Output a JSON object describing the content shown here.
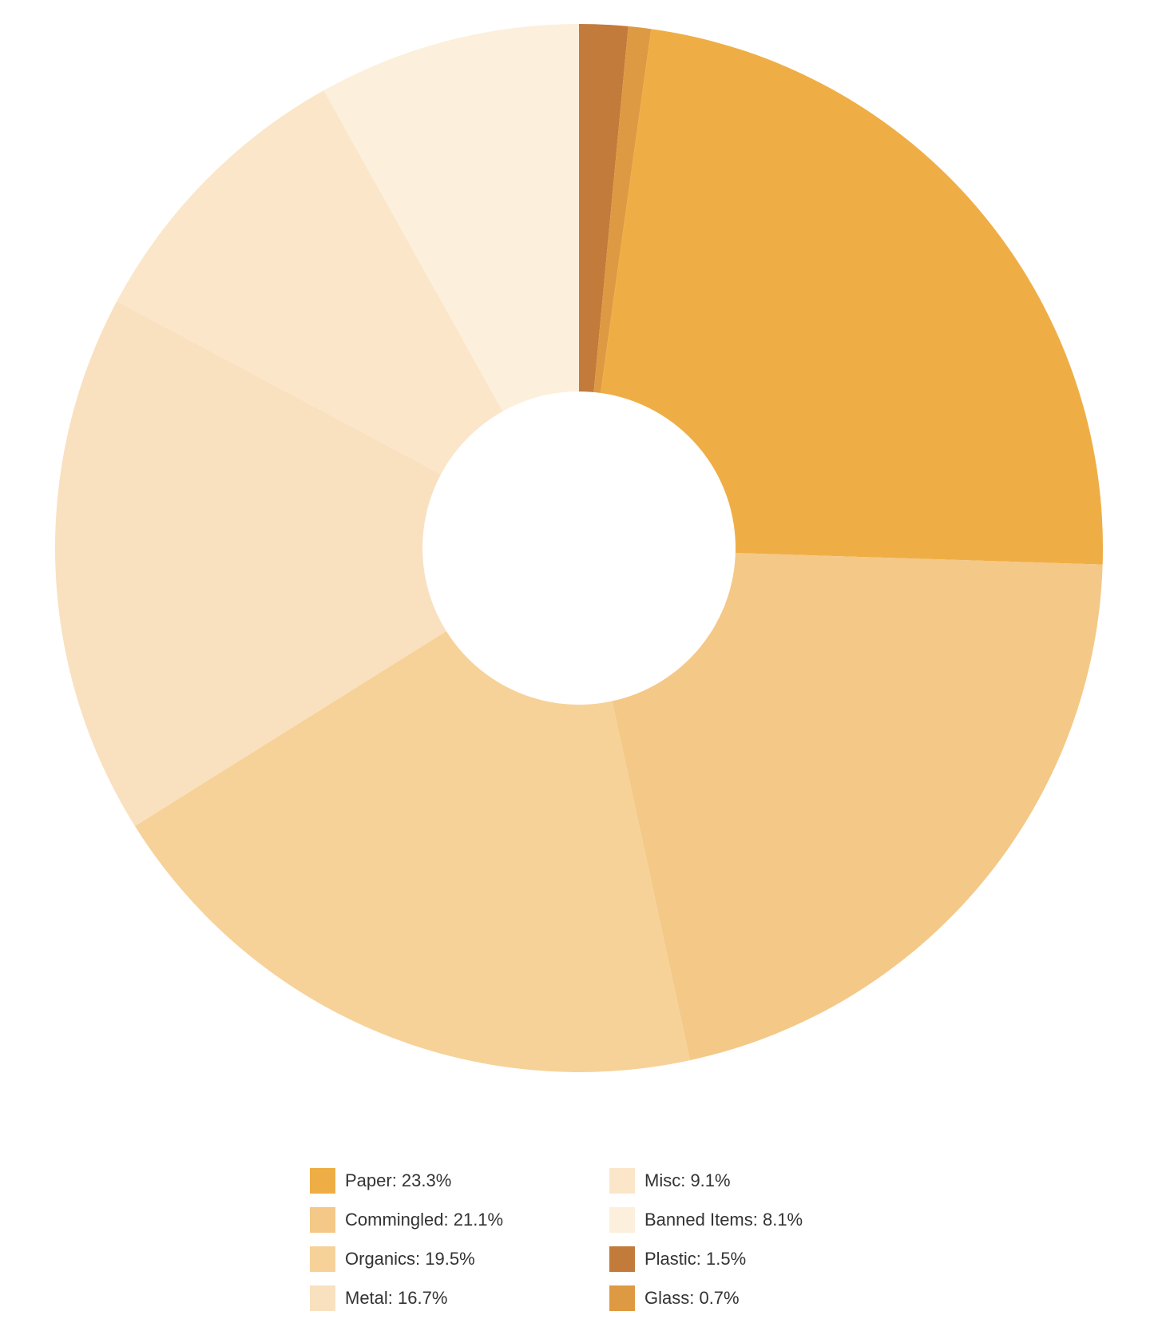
{
  "chart_data": {
    "type": "pie",
    "donut": true,
    "title": "",
    "slices": [
      {
        "name": "Paper",
        "value": 23.3,
        "label": "Paper: 23.3%",
        "color": "#EFAE45"
      },
      {
        "name": "Commingled",
        "value": 21.1,
        "label": "Commingled: 21.1%",
        "color": "#F4C886"
      },
      {
        "name": "Organics",
        "value": 19.5,
        "label": "Organics: 19.5%",
        "color": "#F6D299"
      },
      {
        "name": "Metal",
        "value": 16.7,
        "label": "Metal: 16.7%",
        "color": "#F9E0BF"
      },
      {
        "name": "Misc",
        "value": 9.1,
        "label": "Misc: 9.1%",
        "color": "#FBE6C9"
      },
      {
        "name": "Banned Items",
        "value": 8.1,
        "label": "Banned Items: 8.1%",
        "color": "#FCF0DC"
      },
      {
        "name": "Plastic",
        "value": 1.5,
        "label": "Plastic: 1.5%",
        "color": "#C27B3B"
      },
      {
        "name": "Glass",
        "value": 0.7,
        "label": "Glass: 0.7%",
        "color": "#DE9A42"
      }
    ],
    "order_clockwise_from_top": [
      "Plastic",
      "Glass",
      "Paper",
      "Commingled",
      "Organics",
      "Metal",
      "Misc",
      "Banned Items"
    ],
    "legend_position": "bottom"
  }
}
